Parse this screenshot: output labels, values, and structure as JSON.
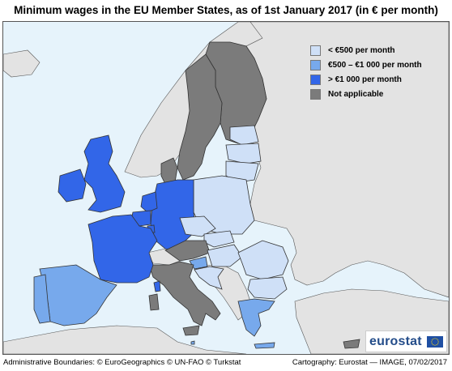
{
  "title": "Minimum wages in the EU Member States, as of 1st January 2017 (in € per month)",
  "legend": {
    "items": [
      {
        "label": "< €500 per month",
        "color": "#cfe0f7"
      },
      {
        "label": "€500 – €1 000 per month",
        "color": "#77a9ec"
      },
      {
        "label": "> €1 000 per month",
        "color": "#3266e8"
      },
      {
        "label": "Not applicable",
        "color": "#7b7b7b"
      }
    ]
  },
  "map": {
    "sea_color": "#e6f3fb",
    "non_eu_color": "#e3e3e3",
    "regions": [
      {
        "name": "Spain",
        "category": "mid"
      },
      {
        "name": "Portugal",
        "category": "mid"
      },
      {
        "name": "Greece",
        "category": "mid"
      },
      {
        "name": "Malta",
        "category": "mid"
      },
      {
        "name": "Slovenia",
        "category": "mid"
      },
      {
        "name": "France",
        "category": "high"
      },
      {
        "name": "Germany",
        "category": "high"
      },
      {
        "name": "Belgium",
        "category": "high"
      },
      {
        "name": "Netherlands",
        "category": "high"
      },
      {
        "name": "Luxembourg",
        "category": "high"
      },
      {
        "name": "United Kingdom",
        "category": "high"
      },
      {
        "name": "Ireland",
        "category": "high"
      },
      {
        "name": "Poland",
        "category": "low"
      },
      {
        "name": "Czechia",
        "category": "low"
      },
      {
        "name": "Slovakia",
        "category": "low"
      },
      {
        "name": "Hungary",
        "category": "low"
      },
      {
        "name": "Romania",
        "category": "low"
      },
      {
        "name": "Bulgaria",
        "category": "low"
      },
      {
        "name": "Croatia",
        "category": "low"
      },
      {
        "name": "Lithuania",
        "category": "low"
      },
      {
        "name": "Latvia",
        "category": "low"
      },
      {
        "name": "Estonia",
        "category": "low"
      },
      {
        "name": "Italy",
        "category": "na"
      },
      {
        "name": "Austria",
        "category": "na"
      },
      {
        "name": "Sweden",
        "category": "na"
      },
      {
        "name": "Finland",
        "category": "na"
      },
      {
        "name": "Denmark",
        "category": "na"
      },
      {
        "name": "Cyprus",
        "category": "na"
      }
    ]
  },
  "logo": {
    "text": "eurostat",
    "flag_color": "#1f4fa3",
    "star_color": "#f7d417"
  },
  "footer": {
    "left": "Administrative Boundaries: © EuroGeographics © UN-FAO © Turkstat",
    "right": "Cartography: Eurostat — IMAGE, 07/02/2017"
  }
}
